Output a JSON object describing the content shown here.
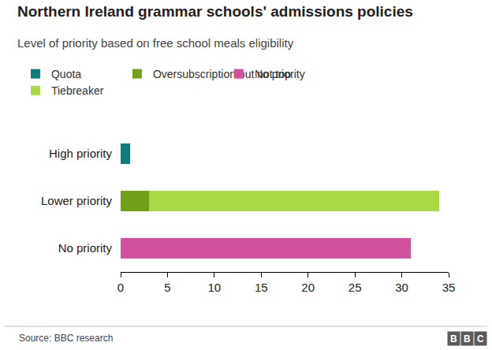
{
  "chart_data": {
    "type": "bar",
    "orientation": "horizontal",
    "stacked": true,
    "title": "Northern Ireland grammar schools' admissions policies",
    "subtitle": "Level of priority based on free school meals eligibility",
    "source": "Source: BBC research",
    "logo": "BBC",
    "categories": [
      "High priority",
      "Lower priority",
      "No priority"
    ],
    "series": [
      {
        "name": "Quota",
        "color": "#0f7d7b",
        "values": [
          1,
          0,
          0
        ]
      },
      {
        "name": "Oversubscription but not top",
        "color": "#72a01a",
        "values": [
          0,
          3,
          0
        ]
      },
      {
        "name": "No priority",
        "color": "#d2519f",
        "values": [
          0,
          0,
          31
        ]
      },
      {
        "name": "Tiebreaker",
        "color": "#a9d944",
        "values": [
          0,
          31,
          0
        ]
      }
    ],
    "xlim": [
      0,
      35
    ],
    "xticks": [
      0,
      5,
      10,
      15,
      20,
      25,
      30,
      35
    ],
    "grid": false,
    "legend": "top left"
  }
}
